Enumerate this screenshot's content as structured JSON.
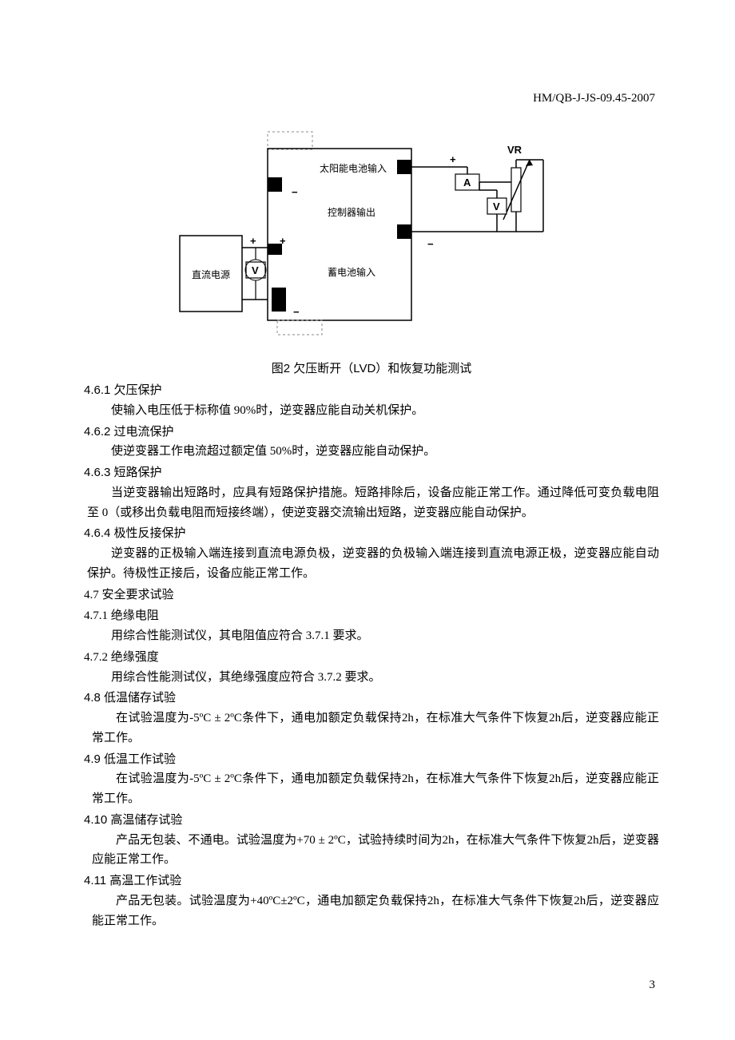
{
  "header": {
    "doc_code": "HM/QB-J-JS-09.45-2007"
  },
  "diagram": {
    "labels": {
      "solar_input": "太阳能电池输入",
      "controller_output": "控制器输出",
      "dc_power": "直流电源",
      "battery_input": "蓄电池输入"
    },
    "symbols": {
      "VR": "VR",
      "A": "A",
      "V": "V",
      "plus": "+",
      "minus": "−"
    },
    "caption": "图2  欠压断开（LVD）和恢复功能测试",
    "colors": {
      "stroke": "#000000",
      "fill_black": "#000000",
      "fill_white": "#ffffff",
      "dashed": "#888888"
    }
  },
  "sections": [
    {
      "num": "4.6.1",
      "title": "欠压保护",
      "bold": true,
      "body": "使输入电压低于标称值 90%时，逆变器应能自动关机保护。"
    },
    {
      "num": "4.6.2",
      "title": "过电流保护",
      "bold": true,
      "body": "使逆变器工作电流超过额定值 50%时，逆变器应能自动保护。"
    },
    {
      "num": "4.6.3",
      "title": "短路保护",
      "bold": true,
      "body": "当逆变器输出短路时，应具有短路保护措施。短路排除后，设备应能正常工作。通过降低可变负载电阻至 0（或移出负载电阻而短接终端），使逆变器交流输出短路，逆变器应能自动保护。"
    },
    {
      "num": "4.6.4",
      "title": "极性反接保护",
      "bold": true,
      "body": "逆变器的正极输入端连接到直流电源负极，逆变器的负极输入端连接到直流电源正极，逆变器应能自动保护。待极性正接后，设备应能正常工作。"
    },
    {
      "num": "4.7",
      "title": "安全要求试验",
      "bold": false,
      "body": ""
    },
    {
      "num": "4.7.1",
      "title": "绝缘电阻",
      "bold": false,
      "body": "用综合性能测试仪，其电阻值应符合 3.7.1 要求。"
    },
    {
      "num": "4.7.2",
      "title": "绝缘强度",
      "bold": false,
      "body": "用综合性能测试仪，其绝缘强度应符合 3.7.2 要求。"
    },
    {
      "num": "4.8",
      "title": "低温储存试验",
      "bold": true,
      "body": "在试验温度为-5ºC ± 2ºC条件下，通电加额定负载保持2h，在标准大气条件下恢复2h后，逆变器应能正常工作。",
      "block": true
    },
    {
      "num": "4.9",
      "title": "低温工作试验",
      "bold": true,
      "body": "在试验温度为-5ºC ± 2ºC条件下，通电加额定负载保持2h，在标准大气条件下恢复2h后，逆变器应能正常工作。",
      "block": true
    },
    {
      "num": "4.10",
      "title": "高温储存试验",
      "bold": true,
      "body": "产品无包装、不通电。试验温度为+70 ± 2ºC，试验持续时间为2h，在标准大气条件下恢复2h后，逆变器应能正常工作。",
      "block": true
    },
    {
      "num": "4.11",
      "title": "高温工作试验",
      "bold": true,
      "body": "产品无包装。试验温度为+40ºC±2ºC，通电加额定负载保持2h，在标准大气条件下恢复2h后，逆变器应能正常工作。",
      "block": true
    }
  ],
  "page_number": "3"
}
